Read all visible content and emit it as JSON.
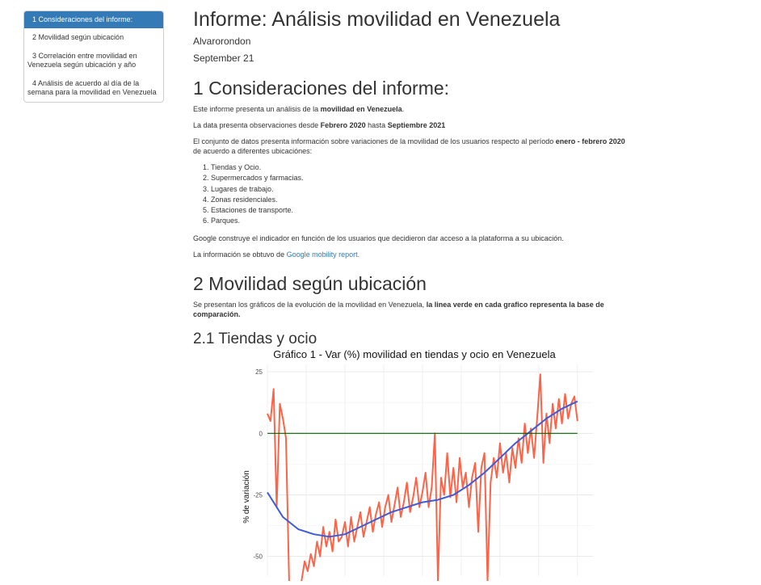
{
  "toc": {
    "items": [
      {
        "label": "1 Consideraciones del informe:",
        "active": true
      },
      {
        "label": "2 Movilidad según ubicación",
        "active": false
      },
      {
        "label": "3 Correlación entre movilidad en Venezuela según ubicación y año",
        "active": false
      },
      {
        "label": "4 Análisis de acuerdo al día de la semana para la movilidad en Venezuela",
        "active": false
      }
    ]
  },
  "header": {
    "title": "Informe: Análisis movilidad en Venezuela",
    "author": "Alvarorondon",
    "date": "September 21"
  },
  "section1": {
    "heading": "1 Consideraciones del informe:",
    "p1_pre": "Este informe presenta un análisis de la ",
    "p1_bold": "movilidad en Venezuela",
    "p1_post": ".",
    "p2_pre": "La data presenta observaciones desde ",
    "p2_bold1": "Febrero 2020",
    "p2_mid": " hasta ",
    "p2_bold2": "Septiembre 2021",
    "p3_pre": "El conjunto de datos presenta información sobre variaciones de la movilidad de los usuarios respecto al período ",
    "p3_bold": "enero - febrero 2020",
    "p3_post": " de acuerdo a diferentes ubicaciónes:",
    "list": [
      "Tiendas y Ocio.",
      "Supermercados y farmacias.",
      "Lugares de trabajo.",
      "Zonas residenciales.",
      "Estaciones de transporte.",
      "Parques."
    ],
    "p4": "Google construye el indicador en función de los usuarios que decidieron dar acceso a la plataforma a su ubicación.",
    "p5_pre": "La información se obtuvo de ",
    "p5_link": "Google mobility report."
  },
  "section2": {
    "heading": "2 Movilidad según ubicación",
    "p_pre": "Se presentan los gráficos de la evolución de la movilidad en Venezuela, ",
    "p_bold": "la linea verde en cada grafico representa la base de comparación."
  },
  "section21": {
    "heading": "2.1 Tiendas y ocio"
  },
  "colors": {
    "accent": "#337ab7",
    "series": "#ff6347",
    "smooth": "#3b5bdb",
    "baseline": "#006400"
  },
  "chart_data": {
    "type": "line",
    "title": "Gráfico 1 - Var (%) movilidad en tiendas y ocio en Venezuela",
    "ylabel": "% de variación",
    "xlabel": "",
    "ylim": [
      -58,
      28
    ],
    "yticks": [
      25,
      0,
      -25,
      -50
    ],
    "grid": true,
    "series": [
      {
        "role": "daily",
        "x": [
          0,
          1,
          2,
          3,
          4,
          5,
          6,
          7,
          8,
          9,
          10,
          11,
          12,
          13,
          14,
          15,
          16,
          17,
          18,
          19,
          20,
          21,
          22,
          23,
          24,
          25,
          26,
          27,
          28,
          29,
          30,
          31,
          32,
          33,
          34,
          35,
          36,
          37,
          38,
          39,
          40,
          41,
          42,
          43,
          44,
          45,
          46,
          47,
          48,
          49,
          50,
          51,
          52,
          53,
          54,
          55,
          56,
          57,
          58,
          59,
          60,
          61,
          62,
          63,
          64,
          65,
          66,
          67,
          68,
          69,
          70,
          71,
          72,
          73,
          74,
          75,
          76,
          77,
          78,
          79,
          80,
          81,
          82,
          83,
          84,
          85,
          86,
          87,
          88,
          89,
          90,
          91,
          92,
          93,
          94,
          95,
          96,
          97,
          98,
          99,
          100
        ],
        "values": [
          8,
          5,
          18,
          -30,
          12,
          6,
          -2,
          -60,
          -62,
          -62,
          -62,
          -60,
          -52,
          -56,
          -49,
          -54,
          -44,
          -50,
          -38,
          -46,
          -40,
          -48,
          -35,
          -44,
          -42,
          -36,
          -46,
          -34,
          -44,
          -38,
          -32,
          -42,
          -36,
          -30,
          -40,
          -33,
          -28,
          -38,
          -30,
          -25,
          -36,
          -29,
          -22,
          -34,
          -28,
          -20,
          -32,
          -26,
          -18,
          -30,
          -24,
          -16,
          -30,
          -22,
          0,
          -60,
          -18,
          -25,
          -8,
          -26,
          -14,
          -28,
          -10,
          -22,
          -16,
          -30,
          -18,
          -12,
          -40,
          -14,
          -8,
          -60,
          -20,
          -10,
          -18,
          -4,
          -16,
          -8,
          -20,
          -6,
          -14,
          -2,
          -12,
          4,
          -8,
          2,
          -10,
          6,
          24,
          -12,
          8,
          -4,
          12,
          2,
          14,
          4,
          16,
          6,
          12,
          15,
          5
        ]
      },
      {
        "role": "smooth",
        "x": [
          0,
          5,
          10,
          15,
          20,
          25,
          30,
          35,
          40,
          45,
          50,
          55,
          60,
          65,
          70,
          75,
          80,
          85,
          90,
          95,
          100
        ],
        "values": [
          -24,
          -34,
          -39,
          -41,
          -42,
          -41,
          -38,
          -35,
          -32,
          -30,
          -28,
          -27,
          -25,
          -21,
          -16,
          -10,
          -4,
          1,
          6,
          10,
          13
        ]
      },
      {
        "role": "baseline",
        "x": [
          0,
          100
        ],
        "values": [
          0,
          0
        ]
      }
    ]
  }
}
